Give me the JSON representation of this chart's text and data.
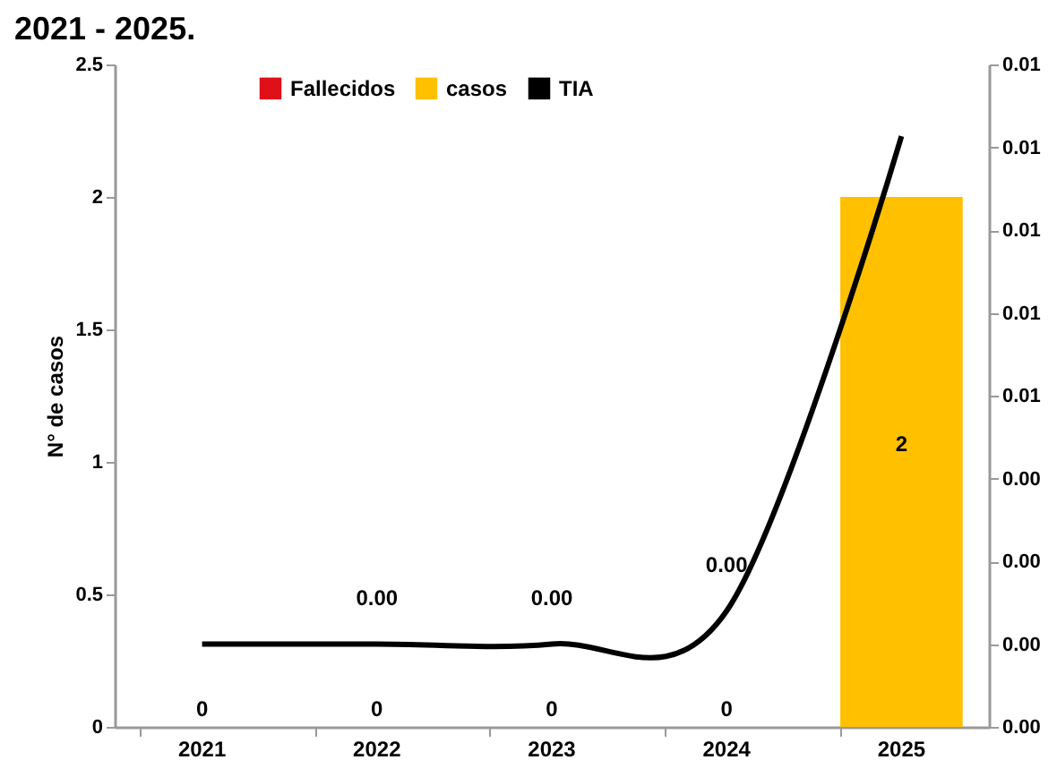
{
  "chart_data": {
    "type": "bar",
    "title": "2021 - 2025.",
    "ylabel": "N° de casos",
    "categories": [
      "2021",
      "2022",
      "2023",
      "2024",
      "2025"
    ],
    "series": [
      {
        "name": "Fallecidos",
        "color": "#e0101a",
        "values": [
          null,
          null,
          null,
          null,
          null
        ]
      },
      {
        "name": "casos",
        "color": "#ffc000",
        "values": [
          0,
          0,
          0,
          0,
          2
        ],
        "value_labels": [
          "0",
          "0",
          "0",
          "0",
          "2"
        ]
      },
      {
        "name": "TIA",
        "type": "line",
        "axis": "y2",
        "color": "#000000",
        "values": [
          0.0015,
          0.0015,
          0.0015,
          0.0021,
          0.0107
        ],
        "value_labels": [
          null,
          "0.00",
          "0.00",
          "0.00",
          null
        ]
      }
    ],
    "ylim": [
      0,
      2.5
    ],
    "yticks": [
      0,
      0.5,
      1,
      1.5,
      2,
      2.5
    ],
    "y2lim": [
      0,
      0.012
    ],
    "y2ticks": [
      {
        "value": 0,
        "label": "0.00"
      },
      {
        "value": 0.0015,
        "label": "0.00"
      },
      {
        "value": 0.003,
        "label": "0.00"
      },
      {
        "value": 0.0045,
        "label": "0.00"
      },
      {
        "value": 0.006,
        "label": "0.01"
      },
      {
        "value": 0.0075,
        "label": "0.01"
      },
      {
        "value": 0.009,
        "label": "0.01"
      },
      {
        "value": 0.0105,
        "label": "0.01"
      },
      {
        "value": 0.012,
        "label": "0.01"
      }
    ],
    "legend": "top",
    "grid": false
  }
}
